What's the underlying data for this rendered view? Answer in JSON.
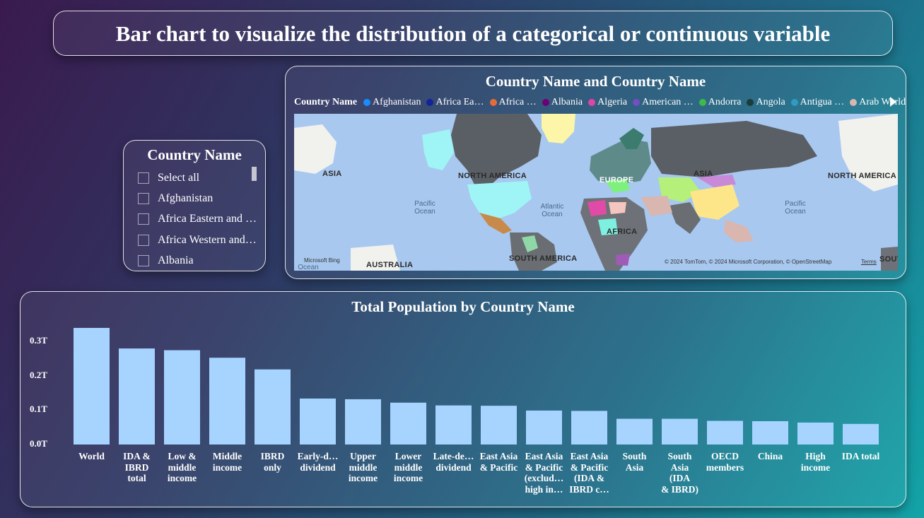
{
  "title": "Bar chart to visualize the distribution of a categorical or continuous variable",
  "slicer": {
    "title": "Country Name",
    "items": [
      "Select all",
      "Afghanistan",
      "Africa Eastern and …",
      "Africa Western and…",
      "Albania"
    ]
  },
  "map": {
    "title": "Country Name and Country Name",
    "legend_title": "Country Name",
    "legend": [
      {
        "label": "Afghanistan",
        "color": "#1a8cff"
      },
      {
        "label": "Africa Ea…",
        "color": "#12239e"
      },
      {
        "label": "Africa …",
        "color": "#e66c37"
      },
      {
        "label": "Albania",
        "color": "#6b007b"
      },
      {
        "label": "Algeria",
        "color": "#e044a7"
      },
      {
        "label": "American …",
        "color": "#744ec2"
      },
      {
        "label": "Andorra",
        "color": "#3fb94a"
      },
      {
        "label": "Angola",
        "color": "#1a3d3a"
      },
      {
        "label": "Antigua …",
        "color": "#2f9bc3"
      },
      {
        "label": "Arab World",
        "color": "#d9b6b0"
      }
    ],
    "labels": {
      "asia_left": "ASIA",
      "north_america": "NORTH AMERICA",
      "europe": "EUROPE",
      "asia": "ASIA",
      "north_america_right": "NORTH AMERICA",
      "africa": "AFRICA",
      "south_america": "SOUTH AMERICA",
      "australia": "AUSTRALIA",
      "south_right": "SOUT",
      "ocean_bottom": "Ocean",
      "pacific_left": "Pacific\nOcean",
      "atlantic": "Atlantic\nOcean",
      "pacific_right": "Pacific\nOcean"
    },
    "attribution": "© 2024 TomTom, © 2024 Microsoft Corporation, © OpenStreetMap",
    "terms": "Terms",
    "bing": "Microsoft Bing"
  },
  "chart_data": {
    "type": "bar",
    "title": "Total Population by Country Name",
    "categories": [
      "World",
      "IDA & IBRD total",
      "Low & middle income",
      "Middle income",
      "IBRD only",
      "Early-d… dividend",
      "Upper middle income",
      "Lower middle income",
      "Late-de… dividend",
      "East Asia & Pacific",
      "East Asia & Pacific (exclud… high in…",
      "East Asia & Pacific (IDA & IBRD c…",
      "South Asia",
      "South Asia (IDA & IBRD)",
      "OECD members",
      "China",
      "High income",
      "IDA total"
    ],
    "category_lines": [
      [
        "World"
      ],
      [
        "IDA &",
        "IBRD",
        "total"
      ],
      [
        "Low &",
        "middle",
        "income"
      ],
      [
        "Middle",
        "income"
      ],
      [
        "IBRD",
        "only"
      ],
      [
        "Early-d…",
        "dividend"
      ],
      [
        "Upper",
        "middle",
        "income"
      ],
      [
        "Lower",
        "middle",
        "income"
      ],
      [
        "Late-de…",
        "dividend"
      ],
      [
        "East Asia",
        "& Pacific"
      ],
      [
        "East Asia",
        "& Pacific",
        "(exclud…",
        "high in…"
      ],
      [
        "East Asia",
        "& Pacific",
        "(IDA &",
        "IBRD c…"
      ],
      [
        "South",
        "Asia"
      ],
      [
        "South",
        "Asia (IDA",
        "& IBRD)"
      ],
      [
        "OECD",
        "members"
      ],
      [
        "China"
      ],
      [
        "High",
        "income"
      ],
      [
        "IDA total"
      ]
    ],
    "values": [
      0.34,
      0.28,
      0.275,
      0.253,
      0.219,
      0.134,
      0.132,
      0.122,
      0.114,
      0.113,
      0.099,
      0.098,
      0.075,
      0.075,
      0.069,
      0.068,
      0.064,
      0.06
    ],
    "value_unit": "T",
    "y_ticks": [
      "0.0T",
      "0.1T",
      "0.2T",
      "0.3T"
    ],
    "y_tick_values": [
      0,
      0.1,
      0.2,
      0.3
    ],
    "ylim": [
      0,
      0.34
    ],
    "bar_color": "#a7d3ff",
    "grid": false
  }
}
